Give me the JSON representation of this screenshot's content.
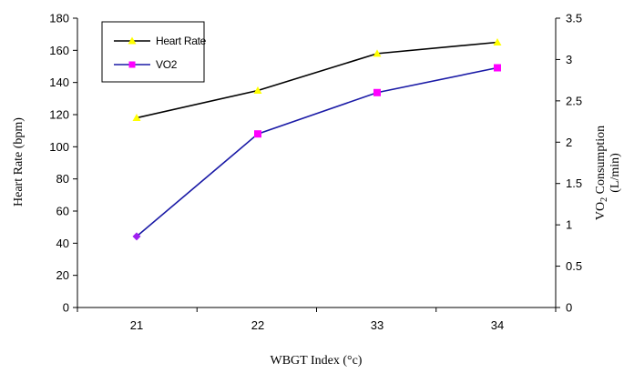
{
  "chart_data": {
    "type": "line",
    "categories": [
      "21",
      "22",
      "33",
      "34"
    ],
    "xlabel": "WBGT Index (°c)",
    "ylabel_left": "Heart Rate (bpm)",
    "ylabel_right_line1": "VO",
    "ylabel_right_sub": "2",
    "ylabel_right_line1_rest": " Consumption",
    "ylabel_right_line2": "(L/min)",
    "y_left": {
      "ylim": [
        0,
        180
      ],
      "ticks": [
        0,
        20,
        40,
        60,
        80,
        100,
        120,
        140,
        160,
        180
      ]
    },
    "y_right": {
      "ylim": [
        0,
        3.5
      ],
      "ticks": [
        "0",
        "0.5",
        "1",
        "1.5",
        "2",
        "2.5",
        "3",
        "3.5"
      ]
    },
    "series": [
      {
        "name": "Heart Rate",
        "axis": "left",
        "values": [
          118,
          135,
          158,
          165
        ],
        "line_color": "#000000",
        "marker": "triangle",
        "marker_color": "#ffff00"
      },
      {
        "name": "VO2",
        "axis": "right",
        "values": [
          0.86,
          2.1,
          2.6,
          2.9
        ],
        "line_color": "#1a1aa6",
        "marker": "square",
        "marker_color": "#ff00ff"
      }
    ],
    "legend": "top-left",
    "grid": false
  }
}
